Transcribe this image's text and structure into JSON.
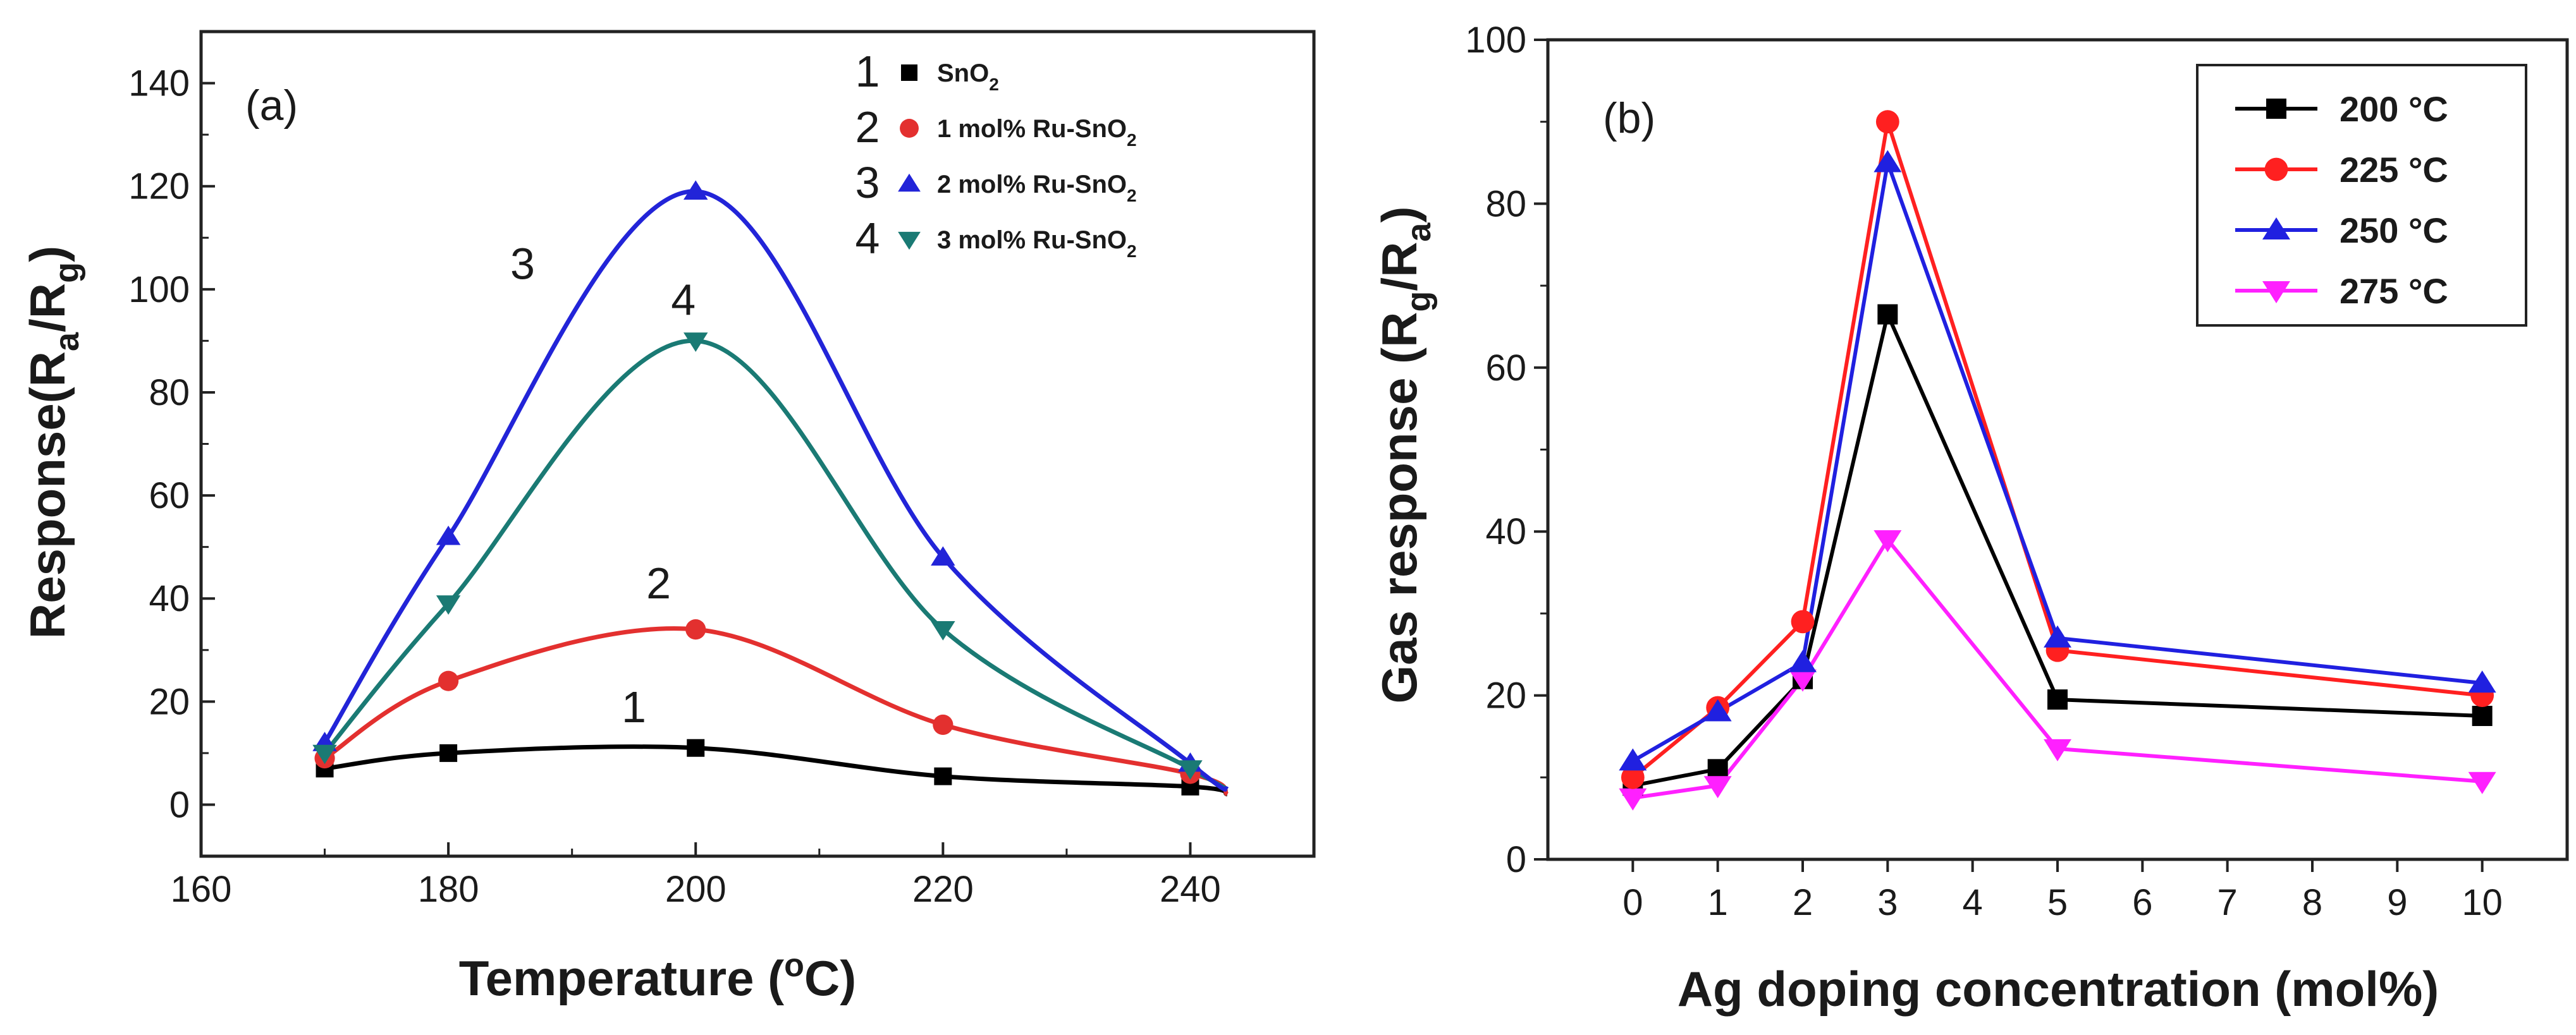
{
  "chart_data": [
    {
      "type": "line",
      "title": "",
      "panel_label": "(a)",
      "xlabel": "Temperature (oC)",
      "xlabel_main": "Temperature (",
      "xlabel_sup": "o",
      "xlabel_tail": "C)",
      "ylabel": "Response(Ra/Rg)",
      "ylabel_main": "Response(R",
      "ylabel_sub1": "a",
      "ylabel_mid": "/R",
      "ylabel_sub2": "g",
      "ylabel_tail": ")",
      "xlim": [
        160,
        250
      ],
      "ylim": [
        -10,
        150
      ],
      "xticks": [
        160,
        180,
        200,
        220,
        240
      ],
      "yticks": [
        0,
        20,
        40,
        60,
        80,
        100,
        120,
        140
      ],
      "x": [
        170,
        180,
        200,
        220,
        240
      ],
      "legend_position": "top-right",
      "series": [
        {
          "number": "1",
          "name": "SnO2",
          "label_main": "SnO",
          "label_sub": "2",
          "marker": "square",
          "color": "#000000",
          "values": [
            7,
            10,
            11,
            5.5,
            3.5
          ],
          "curve_label_pos": [
            195,
            16
          ],
          "end_point": [
            243,
            2
          ]
        },
        {
          "number": "2",
          "name": "1 mol% Ru-SnO2",
          "label_main": "1 mol% Ru-SnO",
          "label_sub": "2",
          "marker": "circle",
          "color": "#e3302f",
          "values": [
            9,
            24,
            34,
            15.5,
            6
          ],
          "curve_label_pos": [
            197,
            40
          ],
          "end_point": [
            243,
            2
          ]
        },
        {
          "number": "3",
          "name": "2 mol% Ru-SnO2",
          "label_main": "2 mol% Ru-SnO",
          "label_sub": "2",
          "marker": "triangle-up",
          "color": "#2224d8",
          "values": [
            12,
            52,
            119,
            48,
            8
          ],
          "curve_label_pos": [
            186,
            102
          ],
          "end_point": [
            243,
            3
          ]
        },
        {
          "number": "4",
          "name": "3 mol% Ru-SnO2",
          "label_main": "3 mol% Ru-SnO",
          "label_sub": "2",
          "marker": "triangle-down",
          "color": "#1a7a74",
          "values": [
            10,
            39,
            90,
            34,
            7
          ],
          "curve_label_pos": [
            199,
            95
          ],
          "end_point": [
            243,
            3
          ]
        }
      ]
    },
    {
      "type": "line",
      "title": "",
      "panel_label": "(b)",
      "xlabel": "Ag doping concentration (mol%)",
      "ylabel": "Gas response (Rg/Ra)",
      "ylabel_main": "Gas response (R",
      "ylabel_sub1": "g",
      "ylabel_mid": "/R",
      "ylabel_sub2": "a",
      "ylabel_tail": ")",
      "xlim": [
        -1,
        11
      ],
      "ylim": [
        0,
        100
      ],
      "xticks": [
        0,
        1,
        2,
        3,
        4,
        5,
        6,
        7,
        8,
        9,
        10
      ],
      "yticks": [
        0,
        20,
        40,
        60,
        80,
        100
      ],
      "x": [
        0,
        1,
        2,
        3,
        5,
        10
      ],
      "legend_position": "top-right",
      "series": [
        {
          "name": "200 °C",
          "label_num": "200",
          "label_unit": "°C",
          "marker": "square",
          "color": "#000000",
          "values": [
            9,
            11,
            22,
            66.5,
            19.5,
            17.5
          ]
        },
        {
          "name": "225 °C",
          "label_num": "225",
          "label_unit": "°C",
          "marker": "circle",
          "color": "#ff2020",
          "values": [
            10,
            18.5,
            29,
            90,
            25.5,
            20
          ]
        },
        {
          "name": "250 °C",
          "label_num": "250",
          "label_unit": "°C",
          "marker": "triangle-up",
          "color": "#2020e0",
          "values": [
            12,
            18,
            24,
            85,
            27,
            21.5
          ]
        },
        {
          "name": "275 °C",
          "label_num": "275",
          "label_unit": "°C",
          "marker": "triangle-down",
          "color": "#ff20ff",
          "values": [
            7.5,
            9,
            22,
            39,
            13.5,
            9.5
          ]
        }
      ]
    }
  ]
}
